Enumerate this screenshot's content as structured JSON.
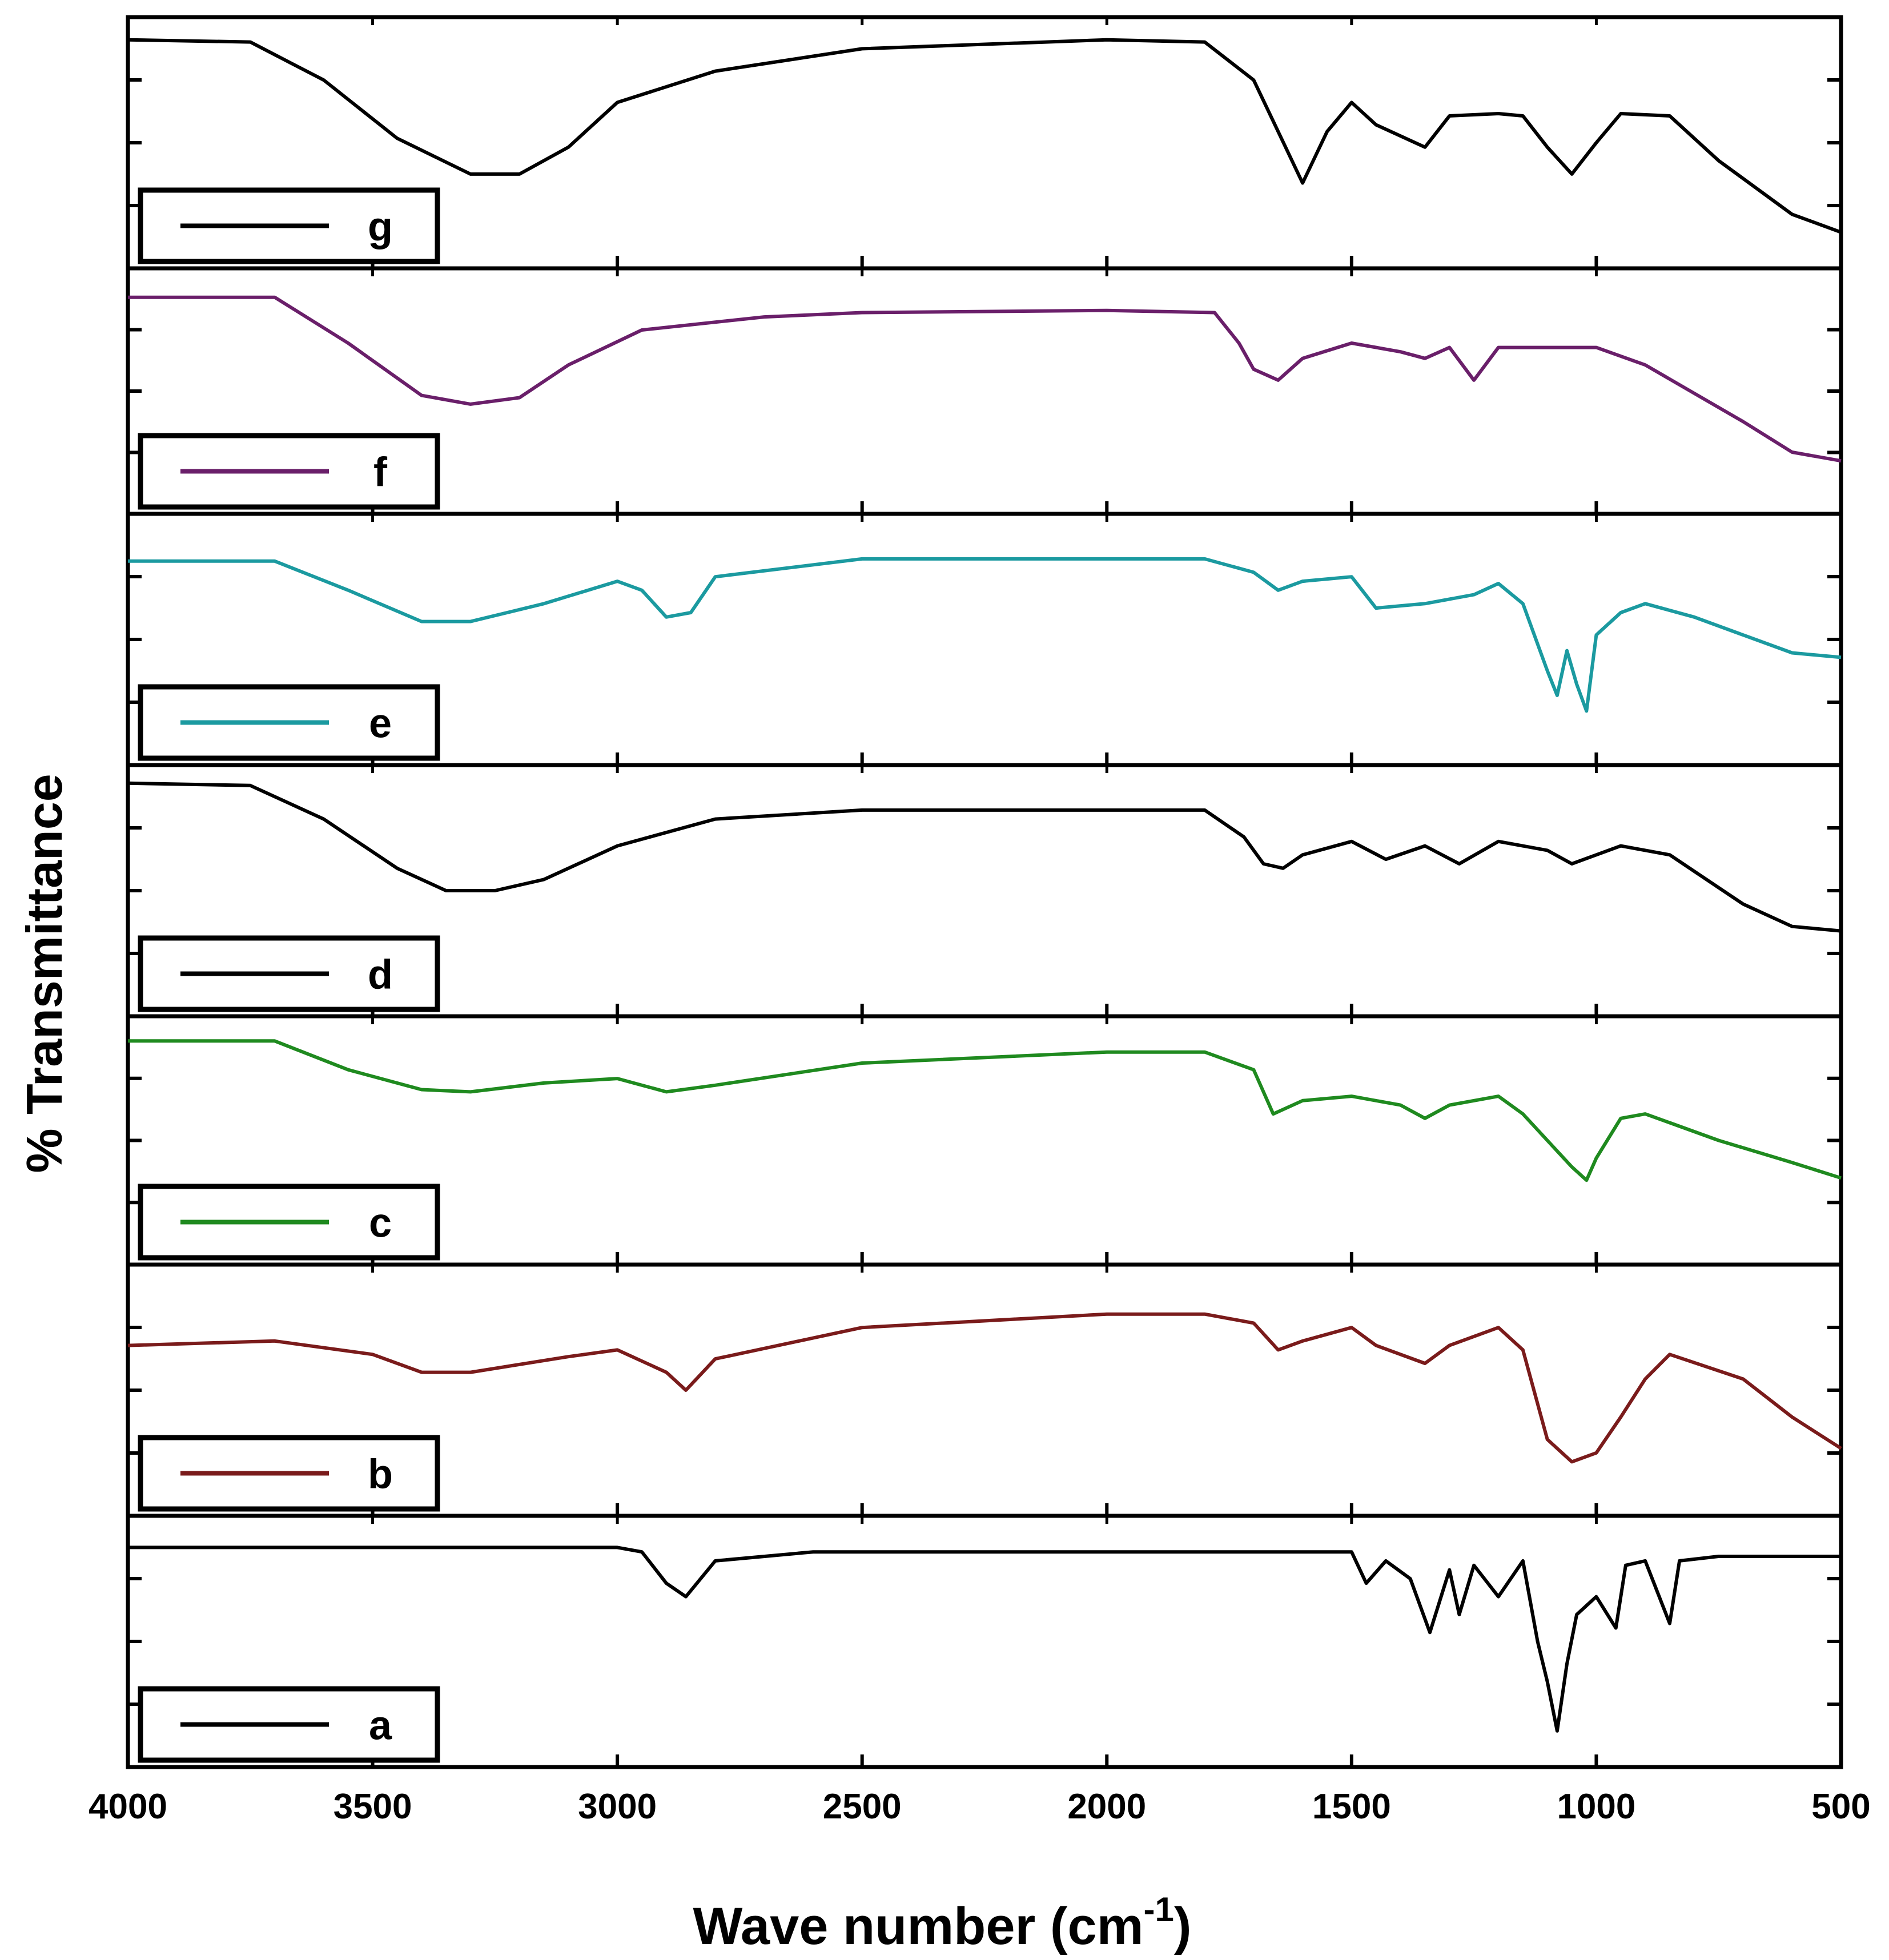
{
  "chart_data": {
    "type": "line",
    "title": "",
    "xlabel": "Wave number (cm",
    "xlabel_superscript": "-1",
    "xlabel_close": ")",
    "ylabel": "% Transmittance",
    "xlim": [
      4000,
      500
    ],
    "x_ticks": [
      "4000",
      "3500",
      "3000",
      "2500",
      "2000",
      "1500",
      "1000",
      "500"
    ],
    "x_tick_values": [
      4000,
      3500,
      3000,
      2500,
      2000,
      1500,
      1000,
      500
    ],
    "y_units": "relative transmittance (0-1 within each panel)",
    "series": [
      {
        "name": "g",
        "color": "#000000",
        "points": [
          [
            4000,
            0.96
          ],
          [
            3750,
            0.95
          ],
          [
            3600,
            0.78
          ],
          [
            3450,
            0.52
          ],
          [
            3300,
            0.36
          ],
          [
            3200,
            0.36
          ],
          [
            3100,
            0.48
          ],
          [
            3000,
            0.68
          ],
          [
            2800,
            0.82
          ],
          [
            2500,
            0.92
          ],
          [
            2000,
            0.96
          ],
          [
            1800,
            0.95
          ],
          [
            1700,
            0.78
          ],
          [
            1650,
            0.55
          ],
          [
            1600,
            0.32
          ],
          [
            1550,
            0.55
          ],
          [
            1500,
            0.68
          ],
          [
            1450,
            0.58
          ],
          [
            1350,
            0.48
          ],
          [
            1300,
            0.62
          ],
          [
            1200,
            0.63
          ],
          [
            1150,
            0.62
          ],
          [
            1100,
            0.48
          ],
          [
            1050,
            0.36
          ],
          [
            1000,
            0.5
          ],
          [
            950,
            0.63
          ],
          [
            850,
            0.62
          ],
          [
            750,
            0.42
          ],
          [
            600,
            0.18
          ],
          [
            500,
            0.1
          ]
        ]
      },
      {
        "name": "f",
        "color": "#6a1f6a",
        "points": [
          [
            4000,
            0.93
          ],
          [
            3700,
            0.93
          ],
          [
            3550,
            0.72
          ],
          [
            3400,
            0.48
          ],
          [
            3300,
            0.44
          ],
          [
            3200,
            0.47
          ],
          [
            3100,
            0.62
          ],
          [
            2950,
            0.78
          ],
          [
            2700,
            0.84
          ],
          [
            2500,
            0.86
          ],
          [
            2000,
            0.87
          ],
          [
            1780,
            0.86
          ],
          [
            1730,
            0.72
          ],
          [
            1700,
            0.6
          ],
          [
            1650,
            0.55
          ],
          [
            1600,
            0.65
          ],
          [
            1500,
            0.72
          ],
          [
            1400,
            0.68
          ],
          [
            1350,
            0.65
          ],
          [
            1300,
            0.7
          ],
          [
            1250,
            0.55
          ],
          [
            1200,
            0.7
          ],
          [
            1000,
            0.7
          ],
          [
            900,
            0.62
          ],
          [
            700,
            0.36
          ],
          [
            600,
            0.22
          ],
          [
            500,
            0.18
          ]
        ]
      },
      {
        "name": "e",
        "color": "#1b9aa0",
        "points": [
          [
            4000,
            0.85
          ],
          [
            3700,
            0.85
          ],
          [
            3550,
            0.72
          ],
          [
            3400,
            0.58
          ],
          [
            3300,
            0.58
          ],
          [
            3150,
            0.66
          ],
          [
            3000,
            0.76
          ],
          [
            2950,
            0.72
          ],
          [
            2900,
            0.6
          ],
          [
            2850,
            0.62
          ],
          [
            2800,
            0.78
          ],
          [
            2500,
            0.86
          ],
          [
            2000,
            0.86
          ],
          [
            1800,
            0.86
          ],
          [
            1700,
            0.8
          ],
          [
            1650,
            0.72
          ],
          [
            1600,
            0.76
          ],
          [
            1500,
            0.78
          ],
          [
            1450,
            0.64
          ],
          [
            1350,
            0.66
          ],
          [
            1250,
            0.7
          ],
          [
            1200,
            0.75
          ],
          [
            1150,
            0.66
          ],
          [
            1100,
            0.36
          ],
          [
            1080,
            0.25
          ],
          [
            1060,
            0.45
          ],
          [
            1040,
            0.3
          ],
          [
            1020,
            0.18
          ],
          [
            1000,
            0.52
          ],
          [
            950,
            0.62
          ],
          [
            900,
            0.66
          ],
          [
            800,
            0.6
          ],
          [
            700,
            0.52
          ],
          [
            600,
            0.44
          ],
          [
            500,
            0.42
          ]
        ]
      },
      {
        "name": "d",
        "color": "#000000",
        "points": [
          [
            4000,
            0.98
          ],
          [
            3750,
            0.97
          ],
          [
            3600,
            0.82
          ],
          [
            3450,
            0.6
          ],
          [
            3350,
            0.5
          ],
          [
            3250,
            0.5
          ],
          [
            3150,
            0.55
          ],
          [
            3000,
            0.7
          ],
          [
            2800,
            0.82
          ],
          [
            2500,
            0.86
          ],
          [
            2000,
            0.86
          ],
          [
            1800,
            0.86
          ],
          [
            1720,
            0.74
          ],
          [
            1680,
            0.62
          ],
          [
            1640,
            0.6
          ],
          [
            1600,
            0.66
          ],
          [
            1500,
            0.72
          ],
          [
            1430,
            0.64
          ],
          [
            1350,
            0.7
          ],
          [
            1280,
            0.62
          ],
          [
            1200,
            0.72
          ],
          [
            1100,
            0.68
          ],
          [
            1050,
            0.62
          ],
          [
            1000,
            0.66
          ],
          [
            950,
            0.7
          ],
          [
            850,
            0.66
          ],
          [
            700,
            0.44
          ],
          [
            600,
            0.34
          ],
          [
            500,
            0.32
          ]
        ]
      },
      {
        "name": "c",
        "color": "#1f8a1f",
        "points": [
          [
            4000,
            0.95
          ],
          [
            3700,
            0.95
          ],
          [
            3550,
            0.82
          ],
          [
            3400,
            0.73
          ],
          [
            3300,
            0.72
          ],
          [
            3150,
            0.76
          ],
          [
            3000,
            0.78
          ],
          [
            2900,
            0.72
          ],
          [
            2800,
            0.75
          ],
          [
            2500,
            0.85
          ],
          [
            2000,
            0.9
          ],
          [
            1800,
            0.9
          ],
          [
            1700,
            0.82
          ],
          [
            1660,
            0.62
          ],
          [
            1600,
            0.68
          ],
          [
            1500,
            0.7
          ],
          [
            1400,
            0.66
          ],
          [
            1350,
            0.6
          ],
          [
            1300,
            0.66
          ],
          [
            1200,
            0.7
          ],
          [
            1150,
            0.62
          ],
          [
            1100,
            0.5
          ],
          [
            1050,
            0.38
          ],
          [
            1020,
            0.32
          ],
          [
            1000,
            0.42
          ],
          [
            950,
            0.6
          ],
          [
            900,
            0.62
          ],
          [
            850,
            0.58
          ],
          [
            750,
            0.5
          ],
          [
            600,
            0.4
          ],
          [
            500,
            0.33
          ]
        ]
      },
      {
        "name": "b",
        "color": "#7a1b1b",
        "points": [
          [
            4000,
            0.7
          ],
          [
            3700,
            0.72
          ],
          [
            3500,
            0.66
          ],
          [
            3400,
            0.58
          ],
          [
            3300,
            0.58
          ],
          [
            3100,
            0.65
          ],
          [
            3000,
            0.68
          ],
          [
            2900,
            0.58
          ],
          [
            2860,
            0.5
          ],
          [
            2800,
            0.64
          ],
          [
            2500,
            0.78
          ],
          [
            2000,
            0.84
          ],
          [
            1800,
            0.84
          ],
          [
            1700,
            0.8
          ],
          [
            1650,
            0.68
          ],
          [
            1600,
            0.72
          ],
          [
            1500,
            0.78
          ],
          [
            1450,
            0.7
          ],
          [
            1350,
            0.62
          ],
          [
            1300,
            0.7
          ],
          [
            1200,
            0.78
          ],
          [
            1150,
            0.68
          ],
          [
            1100,
            0.28
          ],
          [
            1050,
            0.18
          ],
          [
            1000,
            0.22
          ],
          [
            950,
            0.38
          ],
          [
            900,
            0.55
          ],
          [
            850,
            0.66
          ],
          [
            700,
            0.55
          ],
          [
            600,
            0.38
          ],
          [
            500,
            0.24
          ]
        ]
      },
      {
        "name": "a",
        "color": "#000000",
        "points": [
          [
            4000,
            0.92
          ],
          [
            3000,
            0.92
          ],
          [
            2950,
            0.9
          ],
          [
            2900,
            0.76
          ],
          [
            2860,
            0.7
          ],
          [
            2800,
            0.86
          ],
          [
            2600,
            0.9
          ],
          [
            1500,
            0.9
          ],
          [
            1470,
            0.76
          ],
          [
            1430,
            0.86
          ],
          [
            1380,
            0.78
          ],
          [
            1340,
            0.54
          ],
          [
            1300,
            0.82
          ],
          [
            1280,
            0.62
          ],
          [
            1250,
            0.84
          ],
          [
            1200,
            0.7
          ],
          [
            1150,
            0.86
          ],
          [
            1120,
            0.5
          ],
          [
            1100,
            0.32
          ],
          [
            1080,
            0.1
          ],
          [
            1060,
            0.4
          ],
          [
            1040,
            0.62
          ],
          [
            1000,
            0.7
          ],
          [
            960,
            0.56
          ],
          [
            940,
            0.84
          ],
          [
            900,
            0.86
          ],
          [
            850,
            0.58
          ],
          [
            830,
            0.86
          ],
          [
            750,
            0.88
          ],
          [
            500,
            0.88
          ]
        ]
      }
    ]
  }
}
